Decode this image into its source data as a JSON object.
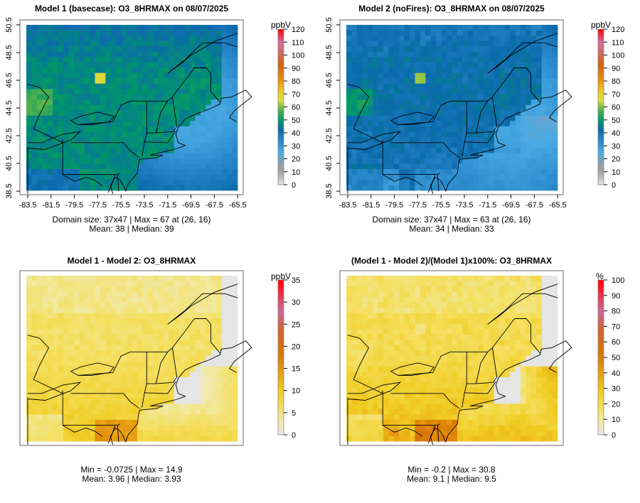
{
  "panels": [
    {
      "title": "Model 1 (basecase): O3_8HRMAX on 08/07/2025",
      "stats1": "Domain size: 37x47 | Max = 67 at (26, 16)",
      "stats2": "Mean: 38 |  Median: 39",
      "unit": "ppbV",
      "scale": "ppb",
      "field": "m1",
      "axes": true,
      "colorbar_ticks": [
        "0",
        "10",
        "20",
        "30",
        "40",
        "50",
        "60",
        "70",
        "80",
        "90",
        "100",
        "110",
        "120"
      ],
      "cmax": 120
    },
    {
      "title": "Model 2 (noFires): O3_8HRMAX on 08/07/2025",
      "stats1": "Domain size: 37x47 | Max = 63 at (26, 16)",
      "stats2": "Mean: 34 |  Median: 33",
      "unit": "ppbV",
      "scale": "ppb",
      "field": "m2",
      "axes": true,
      "colorbar_ticks": [
        "0",
        "10",
        "20",
        "30",
        "40",
        "50",
        "60",
        "70",
        "80",
        "90",
        "100",
        "110",
        "120"
      ],
      "cmax": 120
    },
    {
      "title": "Model 1 - Model 2: O3_8HRMAX",
      "stats1": "Min = -0.0725 | Max = 14.9",
      "stats2": "Mean: 3.96 |  Median: 3.93",
      "unit": "ppbV",
      "scale": "diff",
      "field": "diff",
      "axes": false,
      "colorbar_ticks": [
        "0",
        "5",
        "10",
        "15",
        "20",
        "25",
        "30",
        "35"
      ],
      "cmax": 35
    },
    {
      "title": "(Model 1 - Model 2)/(Model 1)x100%: O3_8HRMAX",
      "stats1": "Min = -0.2 | Max = 30.8",
      "stats2": "Mean: 9.1 |  Median: 9.5",
      "unit": "%",
      "scale": "pct",
      "field": "pct",
      "axes": false,
      "colorbar_ticks": [
        "0",
        "10",
        "20",
        "30",
        "40",
        "50",
        "60",
        "70",
        "80",
        "90",
        "100"
      ],
      "cmax": 100
    }
  ],
  "axes": {
    "x_ticks": [
      "-83.5",
      "-81.5",
      "-79.5",
      "-77.5",
      "-75.5",
      "-73.5",
      "-71.5",
      "-69.5",
      "-67.5",
      "-65.5"
    ],
    "y_ticks": [
      "38.5",
      "40.5",
      "42.5",
      "44.5",
      "46.5",
      "48.5",
      "50.5"
    ]
  },
  "colormaps": {
    "ppb": [
      [
        0,
        "#e5e5e5"
      ],
      [
        10,
        "#a3a3a3"
      ],
      [
        17,
        "#8e9cab"
      ],
      [
        25,
        "#4aabe5"
      ],
      [
        33,
        "#2d8ccd"
      ],
      [
        42,
        "#0a6aab"
      ],
      [
        50,
        "#00966a"
      ],
      [
        58,
        "#55b24c"
      ],
      [
        65,
        "#d6df3e"
      ],
      [
        72,
        "#f0c828"
      ],
      [
        80,
        "#e69a10"
      ],
      [
        92,
        "#d66010"
      ],
      [
        102,
        "#d06a60"
      ],
      [
        110,
        "#d66aa0"
      ],
      [
        120,
        "#ff0000"
      ]
    ],
    "diff": [
      [
        0,
        "#e5e5e5"
      ],
      [
        3,
        "#f0eab0"
      ],
      [
        6,
        "#f4e062"
      ],
      [
        10,
        "#f0cc22"
      ],
      [
        14,
        "#e8a010"
      ],
      [
        18,
        "#d97800"
      ],
      [
        24,
        "#d06030"
      ],
      [
        28,
        "#cc6a9a"
      ],
      [
        35,
        "#ff0000"
      ]
    ],
    "pct": [
      [
        0,
        "#e5e5e5"
      ],
      [
        8,
        "#f0eab0"
      ],
      [
        17,
        "#f4e062"
      ],
      [
        28,
        "#f0cc22"
      ],
      [
        40,
        "#e8a010"
      ],
      [
        52,
        "#d97800"
      ],
      [
        68,
        "#d06030"
      ],
      [
        80,
        "#cc6a9a"
      ],
      [
        100,
        "#ff0000"
      ]
    ]
  }
}
